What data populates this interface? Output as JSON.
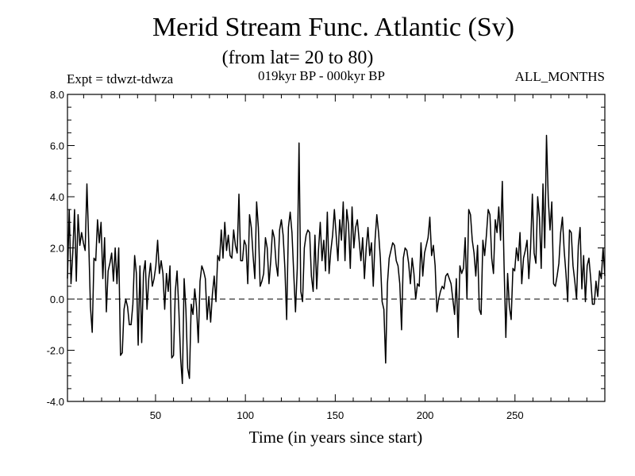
{
  "chart_data": {
    "type": "line",
    "title": "Merid Stream Func. Atlantic (Sv)",
    "subtitle": "(from lat= 20 to 80)",
    "annotations": {
      "experiment": "Expt = tdwzt-tdwza",
      "period": "019kyr BP - 000kyr BP",
      "months": "ALL_MONTHS"
    },
    "xlabel": "Time (in years since start)",
    "ylabel": "",
    "xlim": [
      1,
      300
    ],
    "ylim": [
      -4.0,
      8.0
    ],
    "xticks": [
      50,
      100,
      150,
      200,
      250
    ],
    "yticks": [
      -4.0,
      -2.0,
      0.0,
      2.0,
      4.0,
      6.0,
      8.0
    ],
    "ytick_labels": [
      "-4.0",
      "-2.0",
      "0.0",
      "2.0",
      "4.0",
      "6.0",
      "8.0"
    ],
    "reference_line": {
      "y": 0.0,
      "style": "dashed"
    },
    "grid": false,
    "series": [
      {
        "values": [
          0.8,
          3.5,
          0.6,
          1.8,
          3.5,
          0.7,
          3.3,
          2.1,
          2.6,
          2.2,
          1.9,
          4.5,
          2.3,
          -0.3,
          -1.3,
          1.6,
          1.5,
          3.1,
          2.2,
          3.0,
          0.8,
          2.4,
          -0.5,
          1.1,
          1.4,
          1.8,
          0.7,
          2.0,
          0.6,
          2.0,
          -2.2,
          -2.1,
          -0.4,
          0.0,
          -0.3,
          -1.0,
          -1.0,
          -0.2,
          1.7,
          1.0,
          -1.8,
          1.3,
          -1.7,
          1.0,
          1.5,
          -0.4,
          0.8,
          1.4,
          0.5,
          0.8,
          1.3,
          2.3,
          1.0,
          1.5,
          1.0,
          -0.4,
          1.0,
          0.3,
          1.3,
          -2.3,
          -2.2,
          0.3,
          1.1,
          -0.4,
          -2.3,
          -3.3,
          0.8,
          -0.4,
          -2.7,
          -3.1,
          -0.2,
          -0.6,
          0.4,
          -0.3,
          -1.7,
          0.7,
          1.3,
          1.1,
          0.8,
          -0.8,
          0.1,
          -0.9,
          0.2,
          0.9,
          -0.1,
          1.7,
          1.5,
          2.7,
          1.6,
          3.0,
          1.9,
          2.5,
          1.7,
          1.6,
          2.7,
          2.1,
          1.8,
          4.1,
          1.5,
          1.5,
          2.3,
          2.1,
          0.6,
          3.3,
          2.8,
          1.7,
          0.8,
          3.8,
          2.8,
          0.5,
          0.7,
          1.0,
          2.4,
          2.0,
          0.6,
          1.5,
          2.7,
          2.4,
          1.4,
          0.9,
          2.7,
          3.1,
          2.5,
          1.2,
          -0.8,
          2.8,
          3.4,
          2.6,
          1.0,
          -0.5,
          1.2,
          6.1,
          0.3,
          -0.1,
          2.0,
          2.5,
          2.7,
          2.6,
          0.9,
          0.3,
          2.5,
          0.4,
          1.9,
          3.0,
          1.5,
          2.3,
          1.1,
          3.4,
          1.0,
          1.9,
          2.5,
          3.5,
          2.5,
          1.5,
          3.1,
          2.3,
          3.8,
          1.5,
          3.5,
          2.9,
          1.2,
          3.6,
          2.0,
          2.8,
          3.1,
          2.3,
          1.5,
          2.4,
          0.8,
          2.0,
          2.8,
          1.7,
          2.2,
          0.5,
          2.3,
          3.3,
          2.6,
          1.6,
          -0.1,
          -0.4,
          -2.5,
          0.6,
          1.6,
          1.9,
          2.2,
          2.1,
          1.5,
          1.3,
          0.6,
          -1.2,
          1.6,
          2.0,
          1.9,
          1.4,
          0.6,
          1.6,
          1.0,
          0.0,
          0.6,
          0.5,
          2.2,
          0.9,
          1.8,
          2.1,
          2.4,
          3.2,
          1.7,
          2.1,
          1.3,
          -0.5,
          0.0,
          0.3,
          0.5,
          0.4,
          0.9,
          1.0,
          0.8,
          0.6,
          0.0,
          -0.6,
          0.8,
          -1.5,
          1.3,
          1.0,
          1.2,
          2.4,
          0.0,
          3.5,
          3.3,
          2.3,
          1.8,
          0.9,
          2.1,
          -0.4,
          -0.6,
          2.3,
          1.7,
          2.5,
          3.5,
          3.3,
          1.6,
          1.0,
          3.1,
          2.6,
          3.6,
          2.3,
          4.6,
          1.3,
          -1.5,
          1.0,
          -0.3,
          -0.8,
          1.2,
          1.1,
          2.0,
          1.5,
          2.6,
          0.6,
          1.6,
          1.9,
          2.3,
          0.8,
          2.0,
          4.1,
          1.8,
          1.4,
          4.0,
          3.2,
          1.2,
          4.5,
          2.0,
          6.4,
          3.9,
          2.7,
          3.8,
          0.6,
          0.5,
          0.9,
          1.4,
          2.6,
          3.2,
          1.9,
          1.0,
          -0.1,
          2.7,
          2.6,
          1.3,
          0.7,
          0.0,
          2.1,
          2.8,
          0.4,
          1.7,
          -0.1,
          1.3,
          1.6,
          0.8,
          -0.2,
          -0.2,
          0.7,
          0.1,
          1.1,
          0.8,
          2.0,
          0.9
        ]
      }
    ]
  }
}
